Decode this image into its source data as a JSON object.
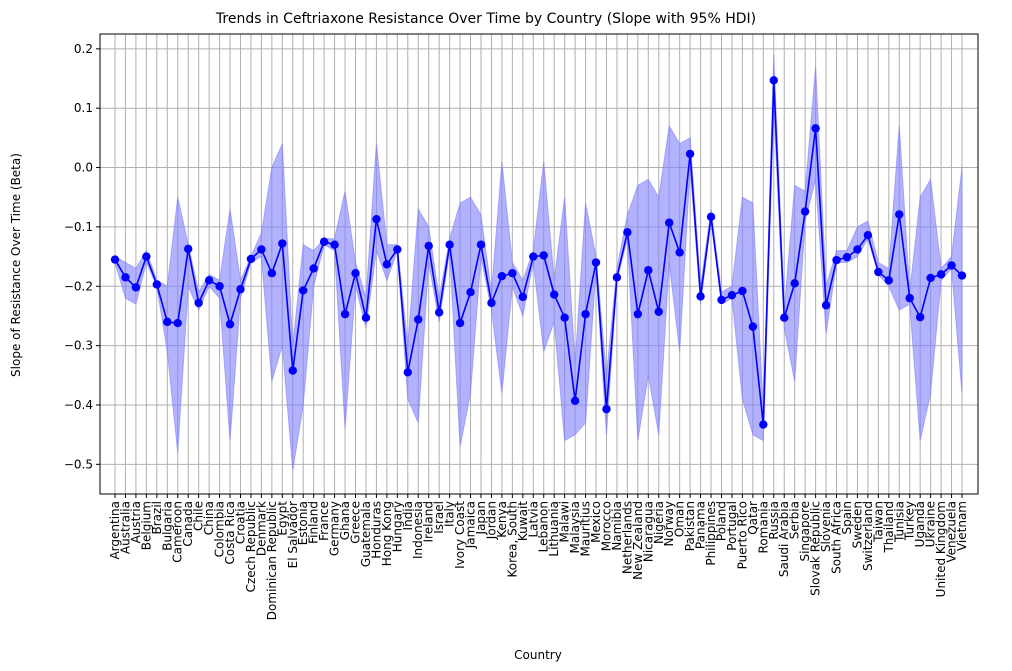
{
  "chart_data": {
    "type": "line",
    "title": "Trends in Ceftriaxone Resistance Over Time by Country (Slope with 95% HDI)",
    "xlabel": "Country",
    "ylabel": "Slope of Resistance Over Time (Beta)",
    "ylim": [
      -0.55,
      0.225
    ],
    "yticks": [
      -0.5,
      -0.4,
      -0.3,
      -0.2,
      -0.1,
      0.0,
      0.1,
      0.2
    ],
    "ytick_labels": [
      "−0.5",
      "−0.4",
      "−0.3",
      "−0.2",
      "−0.1",
      "0.0",
      "0.1",
      "0.2"
    ],
    "grid": true,
    "line_color": "#0000ff",
    "band_color": "#7f7fff",
    "categories": [
      "Argentina",
      "Australia",
      "Austria",
      "Belgium",
      "Brazil",
      "Bulgaria",
      "Cameroon",
      "Canada",
      "Chile",
      "China",
      "Colombia",
      "Costa Rica",
      "Croatia",
      "Czech Republic",
      "Denmark",
      "Dominican Republic",
      "Egypt",
      "El Salvador",
      "Estonia",
      "Finland",
      "France",
      "Germany",
      "Ghana",
      "Greece",
      "Guatemala",
      "Honduras",
      "Hong Kong",
      "Hungary",
      "India",
      "Indonesia",
      "Ireland",
      "Israel",
      "Italy",
      "Ivory Coast",
      "Jamaica",
      "Japan",
      "Jordan",
      "Kenya",
      "Korea, South",
      "Kuwait",
      "Latvia",
      "Lebanon",
      "Lithuania",
      "Malawi",
      "Malaysia",
      "Mauritius",
      "Mexico",
      "Morocco",
      "Namibia",
      "Netherlands",
      "New Zealand",
      "Nicaragua",
      "Nigeria",
      "Norway",
      "Oman",
      "Pakistan",
      "Panama",
      "Philippines",
      "Poland",
      "Portugal",
      "Puerto Rico",
      "Qatar",
      "Romania",
      "Russia",
      "Saudi Arabia",
      "Serbia",
      "Singapore",
      "Slovak Republic",
      "Slovenia",
      "South Africa",
      "Spain",
      "Sweden",
      "Switzerland",
      "Taiwan",
      "Thailand",
      "Tunisia",
      "Turkey",
      "Uganda",
      "Ukraine",
      "United Kingdom",
      "Venezuela",
      "Vietnam"
    ],
    "series": [
      {
        "values": [
          -0.155,
          -0.185,
          -0.202,
          -0.15,
          -0.197,
          -0.26,
          -0.262,
          -0.137,
          -0.228,
          -0.19,
          -0.2,
          -0.264,
          -0.205,
          -0.154,
          -0.138,
          -0.178,
          -0.128,
          -0.342,
          -0.207,
          -0.17,
          -0.125,
          -0.13,
          -0.247,
          -0.178,
          -0.253,
          -0.087,
          -0.163,
          -0.138,
          -0.345,
          -0.256,
          -0.132,
          -0.244,
          -0.13,
          -0.262,
          -0.21,
          -0.13,
          -0.228,
          -0.183,
          -0.178,
          -0.218,
          -0.15,
          -0.148,
          -0.214,
          -0.253,
          -0.393,
          -0.247,
          -0.16,
          -0.407,
          -0.185,
          -0.109,
          -0.247,
          -0.173,
          -0.243,
          -0.093,
          -0.143,
          0.023,
          -0.217,
          -0.083,
          -0.223,
          -0.215,
          -0.208,
          -0.268,
          -0.433,
          0.147,
          -0.253,
          -0.195,
          -0.074,
          0.066,
          -0.232,
          -0.156,
          -0.151,
          -0.138,
          -0.114,
          -0.176,
          -0.19,
          -0.079,
          -0.22,
          -0.252,
          -0.186,
          -0.18,
          -0.165,
          -0.182
        ],
        "hdi_low": [
          -0.16,
          -0.22,
          -0.23,
          -0.16,
          -0.2,
          -0.31,
          -0.48,
          -0.2,
          -0.24,
          -0.2,
          -0.22,
          -0.46,
          -0.22,
          -0.16,
          -0.15,
          -0.36,
          -0.3,
          -0.51,
          -0.4,
          -0.2,
          -0.13,
          -0.14,
          -0.44,
          -0.2,
          -0.27,
          -0.14,
          -0.19,
          -0.14,
          -0.39,
          -0.43,
          -0.16,
          -0.26,
          -0.14,
          -0.47,
          -0.38,
          -0.15,
          -0.24,
          -0.38,
          -0.2,
          -0.25,
          -0.16,
          -0.31,
          -0.26,
          -0.46,
          -0.45,
          -0.43,
          -0.17,
          -0.45,
          -0.19,
          -0.12,
          -0.46,
          -0.35,
          -0.45,
          -0.16,
          -0.31,
          0.0,
          -0.23,
          -0.09,
          -0.23,
          -0.22,
          -0.39,
          -0.45,
          -0.46,
          0.1,
          -0.27,
          -0.36,
          -0.09,
          -0.02,
          -0.28,
          -0.16,
          -0.16,
          -0.15,
          -0.12,
          -0.18,
          -0.2,
          -0.24,
          -0.23,
          -0.46,
          -0.38,
          -0.19,
          -0.17,
          -0.38
        ],
        "hdi_high": [
          -0.15,
          -0.16,
          -0.17,
          -0.14,
          -0.19,
          -0.2,
          -0.05,
          -0.13,
          -0.21,
          -0.18,
          -0.19,
          -0.07,
          -0.19,
          -0.15,
          -0.11,
          0.0,
          0.04,
          -0.3,
          -0.13,
          -0.14,
          -0.12,
          -0.12,
          -0.04,
          -0.16,
          -0.22,
          0.04,
          -0.13,
          -0.13,
          -0.3,
          -0.07,
          -0.1,
          -0.22,
          -0.12,
          -0.06,
          -0.05,
          -0.08,
          -0.21,
          0.01,
          -0.16,
          -0.19,
          -0.14,
          0.01,
          -0.19,
          -0.05,
          -0.33,
          -0.06,
          -0.15,
          -0.35,
          -0.17,
          -0.08,
          -0.03,
          -0.02,
          -0.05,
          0.07,
          0.04,
          0.05,
          -0.2,
          -0.07,
          -0.21,
          -0.2,
          -0.05,
          -0.06,
          -0.41,
          0.19,
          -0.24,
          -0.03,
          -0.04,
          0.17,
          -0.2,
          -0.14,
          -0.14,
          -0.1,
          -0.09,
          -0.16,
          -0.17,
          0.07,
          -0.21,
          -0.05,
          -0.02,
          -0.17,
          -0.15,
          0.0
        ]
      }
    ]
  }
}
